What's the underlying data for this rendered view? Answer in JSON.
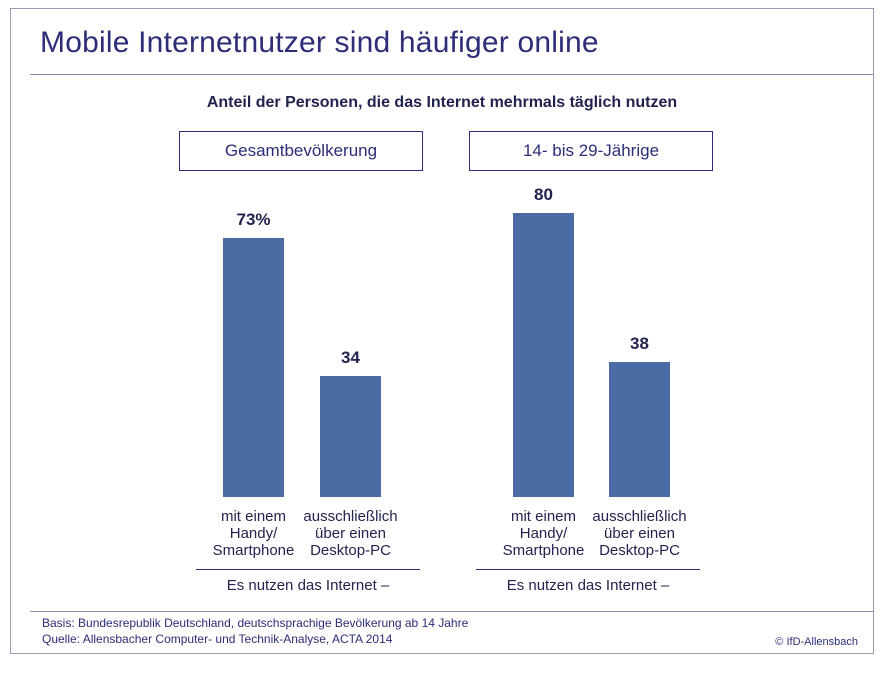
{
  "title": "Mobile Internetnutzer sind häufiger online",
  "subtitle": "Anteil der Personen, die das Internet mehrmals täglich nutzen",
  "colors": {
    "bar": "#4a6ba3",
    "text": "#2d2d78"
  },
  "chart_data": {
    "type": "bar",
    "title": "Anteil der Personen, die das Internet mehrmals täglich nutzen",
    "ylim": [
      0,
      100
    ],
    "groups": [
      {
        "name": "Gesamtbevölkerung",
        "footer": "Es nutzen das Internet –",
        "bars": [
          {
            "category": "mit einem Handy/ Smartphone",
            "value": 73,
            "label": "73%",
            "lines": [
              "mit einem",
              "Handy/",
              "Smartphone"
            ]
          },
          {
            "category": "ausschließlich über einen Desktop-PC",
            "value": 34,
            "label": "34",
            "lines": [
              "ausschließlich",
              "über einen",
              "Desktop-PC"
            ]
          }
        ]
      },
      {
        "name": "14- bis 29-Jährige",
        "footer": "Es nutzen das Internet –",
        "bars": [
          {
            "category": "mit einem Handy/ Smartphone",
            "value": 80,
            "label": "80",
            "lines": [
              "mit einem",
              "Handy/",
              "Smartphone"
            ]
          },
          {
            "category": "ausschließlich über einen Desktop-PC",
            "value": 38,
            "label": "38",
            "lines": [
              "ausschließlich",
              "über einen",
              "Desktop-PC"
            ]
          }
        ]
      }
    ]
  },
  "footer": {
    "basis": "Basis: Bundesrepublik Deutschland, deutschsprachige Bevölkerung ab 14 Jahre",
    "source": "Quelle: Allensbacher Computer- und Technik-Analyse, ACTA 2014",
    "copyright": "© IfD-Allensbach"
  }
}
